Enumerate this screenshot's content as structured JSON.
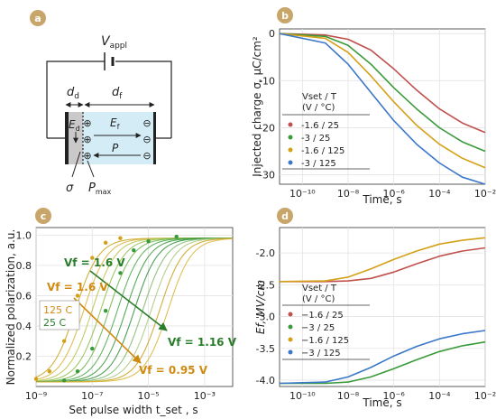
{
  "panels": {
    "a": {
      "badge": "a",
      "v_appl_main": "V",
      "v_appl_sub": "appl",
      "d_d_main": "d",
      "d_d_sub": "d",
      "d_f_main": "d",
      "d_f_sub": "f",
      "e_d_main": "E",
      "e_d_sub": "d",
      "e_f_main": "E",
      "e_f_sub": "f",
      "p_label": "P",
      "sigma_label": "σ",
      "pmax_main": "P",
      "pmax_sub": "max",
      "plus_symbol": "⊕",
      "minus_symbol": "⊖"
    },
    "b": {
      "badge": "b",
      "ylabel": "Injected charge σ, μC/cm²",
      "xlabel": "Time, s",
      "legend_header_line1": "Vset / T",
      "legend_header_line2": "(V  / °C)",
      "legend_items": [
        "-1.6 / 25",
        "-3 / 25",
        "-1.6 / 125",
        "-3 / 125"
      ],
      "xticks": [
        "10⁻¹⁰",
        "10⁻⁸",
        "10⁻⁶",
        "10⁻⁴",
        "10⁻²"
      ],
      "yticks": [
        "0",
        "-10",
        "-20",
        "-30"
      ]
    },
    "c": {
      "badge": "c",
      "ylabel": "Normalized polarization, a.u.",
      "xlabel": "Set pulse width t_set , s",
      "xticks": [
        "10⁻⁹",
        "10⁻⁷",
        "10⁻⁵",
        "10⁻³"
      ],
      "yticks": [
        "0.2",
        "0.4",
        "0.6",
        "0.8",
        "1.0"
      ],
      "ann_green_top": "Vf = 1.6 V",
      "ann_green_bottom": "Vf = 1.16 V",
      "ann_orange_top": "Vf = 1.6 V",
      "ann_orange_bottom": "Vf = 0.95 V",
      "legend_125": "125 C",
      "legend_25": "25 C"
    },
    "d": {
      "badge": "d",
      "ylabel": "Ef, MV/cm",
      "xlabel": "Time, s",
      "legend_header_line1": "Vset / T",
      "legend_header_line2": "(V  / °C)",
      "legend_items": [
        "−1.6 / 25",
        "−3 / 25",
        "−1.6 / 125",
        "−3 / 125"
      ],
      "xticks": [
        "10⁻¹⁰",
        "10⁻⁸",
        "10⁻⁶",
        "10⁻⁴",
        "10⁻²"
      ],
      "yticks": [
        "-2.0",
        "-2.5",
        "-3.0",
        "-3.5",
        "-4.0"
      ]
    }
  },
  "colors": {
    "red": "#c0504d",
    "green": "#3a9a3a",
    "orange": "#d4a017",
    "blue": "#3b78c8",
    "badge": "#c8a66a",
    "electrode": "#9fd3ea"
  },
  "chart_data": [
    {
      "panel": "b",
      "type": "line",
      "xscale": "log",
      "xlabel": "Time, s",
      "ylabel": "Injected charge σ, μC/cm²",
      "xlim": [
        1e-11,
        0.01
      ],
      "ylim": [
        -32,
        1
      ],
      "series": [
        {
          "name": "-1.6 / 25",
          "x": [
            1e-11,
            1e-09,
            1e-08,
            1e-07,
            1e-06,
            1e-05,
            0.0001,
            0.001,
            0.01
          ],
          "values": [
            0,
            -0.3,
            -1.2,
            -3.5,
            -7.5,
            -12,
            -16,
            -19,
            -21
          ]
        },
        {
          "name": "-3 / 25",
          "x": [
            1e-11,
            1e-09,
            1e-08,
            1e-07,
            1e-06,
            1e-05,
            0.0001,
            0.001,
            0.01
          ],
          "values": [
            0,
            -0.6,
            -2.5,
            -6.5,
            -11.5,
            -16,
            -20,
            -23,
            -25
          ]
        },
        {
          "name": "-1.6 / 125",
          "x": [
            1e-11,
            1e-09,
            1e-08,
            1e-07,
            1e-06,
            1e-05,
            0.0001,
            0.001,
            0.01
          ],
          "values": [
            0,
            -1,
            -4,
            -9,
            -14.5,
            -19.5,
            -23.5,
            -26.5,
            -28.5
          ]
        },
        {
          "name": "-3 / 125",
          "x": [
            1e-11,
            1e-09,
            1e-08,
            1e-07,
            1e-06,
            1e-05,
            0.0001,
            0.001,
            0.01
          ],
          "values": [
            0,
            -2,
            -6.5,
            -12.5,
            -18.5,
            -23.5,
            -27.5,
            -30.5,
            -32
          ]
        }
      ]
    },
    {
      "panel": "c",
      "type": "scatter",
      "xscale": "log",
      "xlabel": "Set pulse width t_set , s",
      "ylabel": "Normalized polarization, a.u.",
      "xlim": [
        1e-09,
        0.01
      ],
      "ylim": [
        0.0,
        1.05
      ],
      "series": [
        {
          "name": "125 C",
          "x": [
            1e-09,
            3e-09,
            1e-08,
            3e-08,
            1e-07,
            3e-07,
            1e-06
          ],
          "values": [
            0.05,
            0.1,
            0.3,
            0.6,
            0.85,
            0.95,
            0.98
          ]
        },
        {
          "name": "25 C",
          "x": [
            1e-08,
            3e-08,
            1e-07,
            3e-07,
            1e-06,
            3e-06,
            1e-05,
            0.0001
          ],
          "values": [
            0.04,
            0.1,
            0.25,
            0.5,
            0.75,
            0.9,
            0.96,
            0.99
          ]
        }
      ]
    },
    {
      "panel": "d",
      "type": "line",
      "xscale": "log",
      "xlabel": "Time, s",
      "ylabel": "Ef, MV/cm",
      "xlim": [
        1e-11,
        0.01
      ],
      "ylim": [
        -4.1,
        -1.6
      ],
      "series": [
        {
          "name": "−1.6 / 25",
          "x": [
            1e-11,
            1e-09,
            1e-08,
            1e-07,
            1e-06,
            1e-05,
            0.0001,
            0.001,
            0.01
          ],
          "values": [
            -2.45,
            -2.45,
            -2.44,
            -2.4,
            -2.3,
            -2.17,
            -2.05,
            -1.97,
            -1.92
          ]
        },
        {
          "name": "−3 / 25",
          "x": [
            1e-11,
            1e-09,
            1e-08,
            1e-07,
            1e-06,
            1e-05,
            0.0001,
            0.001,
            0.01
          ],
          "values": [
            -4.05,
            -4.05,
            -4.03,
            -3.95,
            -3.82,
            -3.68,
            -3.55,
            -3.46,
            -3.4
          ]
        },
        {
          "name": "−1.6 / 125",
          "x": [
            1e-11,
            1e-09,
            1e-08,
            1e-07,
            1e-06,
            1e-05,
            0.0001,
            0.001,
            0.01
          ],
          "values": [
            -2.45,
            -2.44,
            -2.38,
            -2.25,
            -2.1,
            -1.97,
            -1.86,
            -1.8,
            -1.76
          ]
        },
        {
          "name": "−3 / 125",
          "x": [
            1e-11,
            1e-09,
            1e-08,
            1e-07,
            1e-06,
            1e-05,
            0.0001,
            0.001,
            0.01
          ],
          "values": [
            -4.05,
            -4.03,
            -3.95,
            -3.8,
            -3.62,
            -3.47,
            -3.35,
            -3.27,
            -3.22
          ]
        }
      ]
    }
  ]
}
